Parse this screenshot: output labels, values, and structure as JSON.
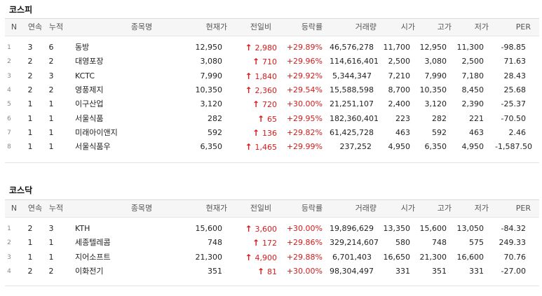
{
  "colors": {
    "up": "#d61a1a"
  },
  "icons": {
    "change_arrow": "arrow-up-icon"
  },
  "headers": {
    "n": "N",
    "streak": "연속",
    "cumulative": "누적",
    "name": "종목명",
    "price": "현재가",
    "change": "전일비",
    "rate": "등락률",
    "volume": "거래량",
    "open": "시가",
    "high": "고가",
    "low": "저가",
    "per": "PER"
  },
  "kospi": {
    "title": "코스피",
    "rows": [
      {
        "n": "1",
        "streak": "3",
        "cumulative": "6",
        "name": "동방",
        "price": "12,950",
        "change": "2,980",
        "rate": "+29.89%",
        "volume": "46,576,278",
        "open": "11,700",
        "high": "12,950",
        "low": "11,300",
        "per": "-98.85"
      },
      {
        "n": "2",
        "streak": "2",
        "cumulative": "2",
        "name": "대영포장",
        "price": "3,080",
        "change": "710",
        "rate": "+29.96%",
        "volume": "114,616,401",
        "open": "2,500",
        "high": "3,080",
        "low": "2,500",
        "per": "71.63"
      },
      {
        "n": "3",
        "streak": "2",
        "cumulative": "3",
        "name": "KCTC",
        "price": "7,990",
        "change": "1,840",
        "rate": "+29.92%",
        "volume": "5,344,347",
        "open": "7,210",
        "high": "7,990",
        "low": "7,180",
        "per": "28.43"
      },
      {
        "n": "4",
        "streak": "2",
        "cumulative": "2",
        "name": "영풍제지",
        "price": "10,350",
        "change": "2,360",
        "rate": "+29.54%",
        "volume": "15,588,598",
        "open": "8,700",
        "high": "10,350",
        "low": "8,450",
        "per": "25.68"
      },
      {
        "n": "5",
        "streak": "1",
        "cumulative": "1",
        "name": "이구산업",
        "price": "3,120",
        "change": "720",
        "rate": "+30.00%",
        "volume": "21,251,107",
        "open": "2,400",
        "high": "3,120",
        "low": "2,390",
        "per": "-25.37"
      },
      {
        "n": "6",
        "streak": "1",
        "cumulative": "1",
        "name": "서울식품",
        "price": "282",
        "change": "65",
        "rate": "+29.95%",
        "volume": "182,360,401",
        "open": "223",
        "high": "282",
        "low": "221",
        "per": "-70.50"
      },
      {
        "n": "7",
        "streak": "1",
        "cumulative": "1",
        "name": "미래아이앤지",
        "price": "592",
        "change": "136",
        "rate": "+29.82%",
        "volume": "61,425,728",
        "open": "463",
        "high": "592",
        "low": "463",
        "per": "2.46"
      },
      {
        "n": "8",
        "streak": "1",
        "cumulative": "1",
        "name": "서울식품우",
        "price": "6,350",
        "change": "1,465",
        "rate": "+29.99%",
        "volume": "237,252",
        "open": "4,950",
        "high": "6,350",
        "low": "4,950",
        "per": "-1,587.50"
      }
    ]
  },
  "kosdaq": {
    "title": "코스닥",
    "rows": [
      {
        "n": "1",
        "streak": "2",
        "cumulative": "3",
        "name": "KTH",
        "price": "15,600",
        "change": "3,600",
        "rate": "+30.00%",
        "volume": "19,896,629",
        "open": "13,350",
        "high": "15,600",
        "low": "13,050",
        "per": "-84.32"
      },
      {
        "n": "2",
        "streak": "1",
        "cumulative": "1",
        "name": "세종텔레콤",
        "price": "748",
        "change": "172",
        "rate": "+29.86%",
        "volume": "329,214,607",
        "open": "580",
        "high": "748",
        "low": "575",
        "per": "249.33"
      },
      {
        "n": "3",
        "streak": "1",
        "cumulative": "1",
        "name": "지어소프트",
        "price": "21,300",
        "change": "4,900",
        "rate": "+29.88%",
        "volume": "6,701,403",
        "open": "16,650",
        "high": "21,300",
        "low": "16,600",
        "per": "70.76"
      },
      {
        "n": "4",
        "streak": "2",
        "cumulative": "2",
        "name": "이화전기",
        "price": "351",
        "change": "81",
        "rate": "+30.00%",
        "volume": "98,304,497",
        "open": "331",
        "high": "351",
        "low": "331",
        "per": "-27.00"
      }
    ]
  }
}
